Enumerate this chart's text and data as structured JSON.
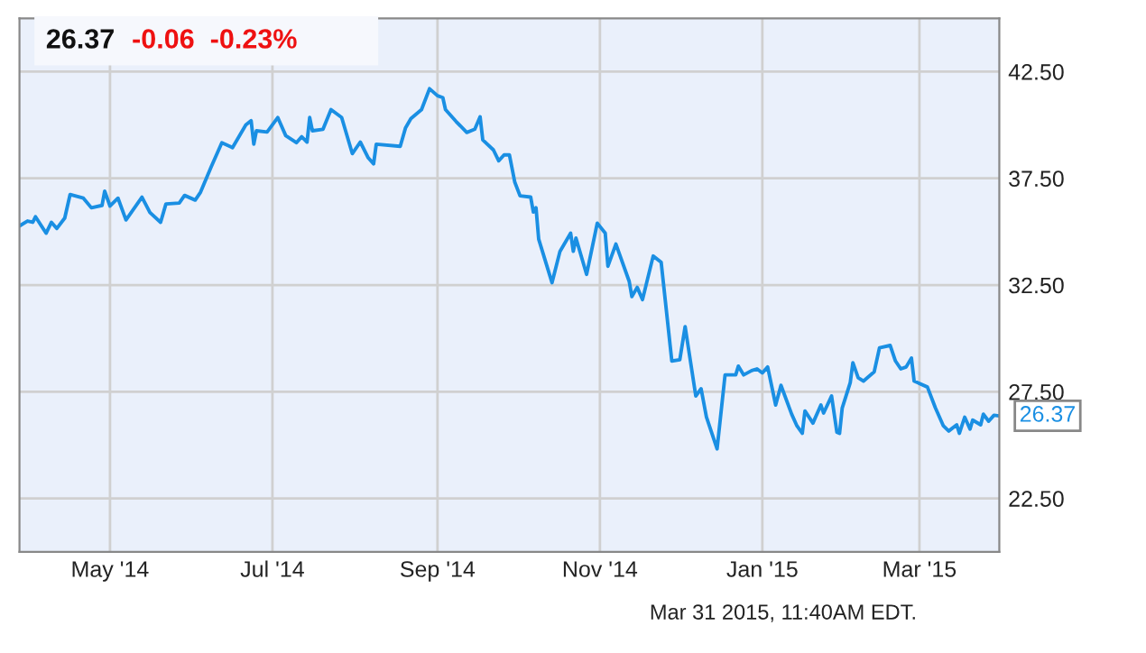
{
  "chart_data": {
    "type": "line",
    "title": "26.37",
    "subtitle": "-0.06  -0.23%",
    "x": [
      "2014-03-28",
      "2014-03-31",
      "2014-04-02",
      "2014-04-03",
      "2014-04-07",
      "2014-04-09",
      "2014-04-11",
      "2014-04-14",
      "2014-04-16",
      "2014-04-21",
      "2014-04-24",
      "2014-04-28",
      "2014-04-29",
      "2014-05-01",
      "2014-05-04",
      "2014-05-07",
      "2014-05-13",
      "2014-05-16",
      "2014-05-20",
      "2014-05-22",
      "2014-05-27",
      "2014-05-29",
      "2014-06-02",
      "2014-06-04",
      "2014-06-08",
      "2014-06-12",
      "2014-06-16",
      "2014-06-21",
      "2014-06-23",
      "2014-06-24",
      "2014-06-25",
      "2014-06-29",
      "2014-07-03",
      "2014-07-06",
      "2014-07-10",
      "2014-07-12",
      "2014-07-14",
      "2014-07-15",
      "2014-07-16",
      "2014-07-20",
      "2014-07-23",
      "2014-07-27",
      "2014-07-31",
      "2014-08-03",
      "2014-08-06",
      "2014-08-08",
      "2014-08-09",
      "2014-08-18",
      "2014-08-20",
      "2014-08-22",
      "2014-08-26",
      "2014-08-29",
      "2014-09-01",
      "2014-09-03",
      "2014-09-04",
      "2014-09-08",
      "2014-09-12",
      "2014-09-15",
      "2014-09-17",
      "2014-09-18",
      "2014-09-22",
      "2014-09-24",
      "2014-09-26",
      "2014-09-28",
      "2014-09-30",
      "2014-10-02",
      "2014-10-06",
      "2014-10-07",
      "2014-10-08",
      "2014-10-09",
      "2014-10-14",
      "2014-10-17",
      "2014-10-21",
      "2014-10-22",
      "2014-10-23",
      "2014-10-27",
      "2014-10-31",
      "2014-11-03",
      "2014-11-04",
      "2014-11-07",
      "2014-11-12",
      "2014-11-13",
      "2014-11-15",
      "2014-11-17",
      "2014-11-21",
      "2014-11-24",
      "2014-11-28",
      "2014-12-01",
      "2014-12-03",
      "2014-12-07",
      "2014-12-09",
      "2014-12-11",
      "2014-12-15",
      "2014-12-18",
      "2014-12-22",
      "2014-12-23",
      "2014-12-25",
      "2014-12-28",
      "2014-12-30",
      "2015-01-01",
      "2015-01-03",
      "2015-01-06",
      "2015-01-08",
      "2015-01-12",
      "2015-01-14",
      "2015-01-16",
      "2015-01-17",
      "2015-01-20",
      "2015-01-23",
      "2015-01-24",
      "2015-01-27",
      "2015-01-29",
      "2015-01-30",
      "2015-01-31",
      "2015-02-03",
      "2015-02-04",
      "2015-02-06",
      "2015-02-08",
      "2015-02-12",
      "2015-02-14",
      "2015-02-18",
      "2015-02-20",
      "2015-02-22",
      "2015-02-24",
      "2015-02-26",
      "2015-02-27",
      "2015-03-04",
      "2015-03-07",
      "2015-03-10",
      "2015-03-12",
      "2015-03-15",
      "2015-03-16",
      "2015-03-18",
      "2015-03-20",
      "2015-03-21",
      "2015-03-24",
      "2015-03-25",
      "2015-03-27",
      "2015-03-29",
      "2015-03-31"
    ],
    "series": [
      {
        "color": "#1a8fe3",
        "values": [
          35.27,
          35.5,
          35.44,
          35.7,
          34.93,
          35.44,
          35.15,
          35.64,
          36.74,
          36.57,
          36.12,
          36.23,
          36.9,
          36.2,
          36.57,
          35.55,
          36.62,
          35.9,
          35.44,
          36.3,
          36.34,
          36.7,
          36.48,
          36.85,
          38.04,
          39.17,
          38.94,
          40.0,
          40.2,
          39.1,
          39.73,
          39.67,
          40.35,
          39.5,
          39.17,
          39.45,
          39.2,
          40.35,
          39.73,
          39.8,
          40.72,
          40.35,
          38.66,
          39.2,
          38.46,
          38.18,
          39.1,
          39.0,
          39.87,
          40.3,
          40.72,
          41.7,
          41.37,
          41.28,
          40.72,
          40.16,
          39.65,
          39.8,
          40.38,
          39.3,
          38.83,
          38.32,
          38.6,
          38.6,
          37.33,
          36.68,
          36.62,
          35.92,
          36.12,
          34.65,
          32.61,
          34.08,
          34.93,
          34.08,
          34.7,
          33.0,
          35.4,
          34.93,
          33.38,
          34.42,
          32.67,
          31.96,
          32.39,
          31.82,
          33.86,
          33.57,
          28.94,
          29.0,
          30.55,
          27.3,
          27.64,
          26.31,
          24.82,
          28.29,
          28.29,
          28.7,
          28.29,
          28.49,
          28.57,
          28.38,
          28.66,
          26.88,
          27.8,
          26.45,
          25.9,
          25.55,
          26.6,
          26.03,
          26.88,
          26.5,
          27.3,
          25.6,
          25.55,
          26.74,
          27.92,
          28.86,
          28.15,
          28.0,
          28.43,
          29.56,
          29.67,
          28.94,
          28.57,
          28.66,
          29.08,
          28.0,
          27.72,
          26.74,
          25.9,
          25.66,
          25.95,
          25.55,
          26.31,
          25.75,
          26.17,
          25.95,
          26.45,
          26.12,
          26.4,
          26.37
        ]
      }
    ],
    "xlim": [
      "2014-03-28",
      "2015-03-31"
    ],
    "xticks": [
      {
        "value": "2014-05-01",
        "label": "May '14"
      },
      {
        "value": "2014-07-01",
        "label": "Jul '14"
      },
      {
        "value": "2014-09-01",
        "label": "Sep '14"
      },
      {
        "value": "2014-11-01",
        "label": "Nov '14"
      },
      {
        "value": "2015-01-01",
        "label": "Jan '15"
      },
      {
        "value": "2015-03-01",
        "label": "Mar '15"
      }
    ],
    "ylim": [
      20,
      45
    ],
    "yticks": [
      {
        "value": 22.5,
        "label": "22.50"
      },
      {
        "value": 27.5,
        "label": "27.50"
      },
      {
        "value": 32.5,
        "label": "32.50"
      },
      {
        "value": 37.5,
        "label": "37.50"
      },
      {
        "value": 42.5,
        "label": "42.50"
      }
    ],
    "grid": true,
    "annotations": [
      {
        "text": "26.37",
        "x": "2015-03-31",
        "y": 26.37
      },
      "Mar 31 2015, 11:40AM EDT."
    ]
  }
}
